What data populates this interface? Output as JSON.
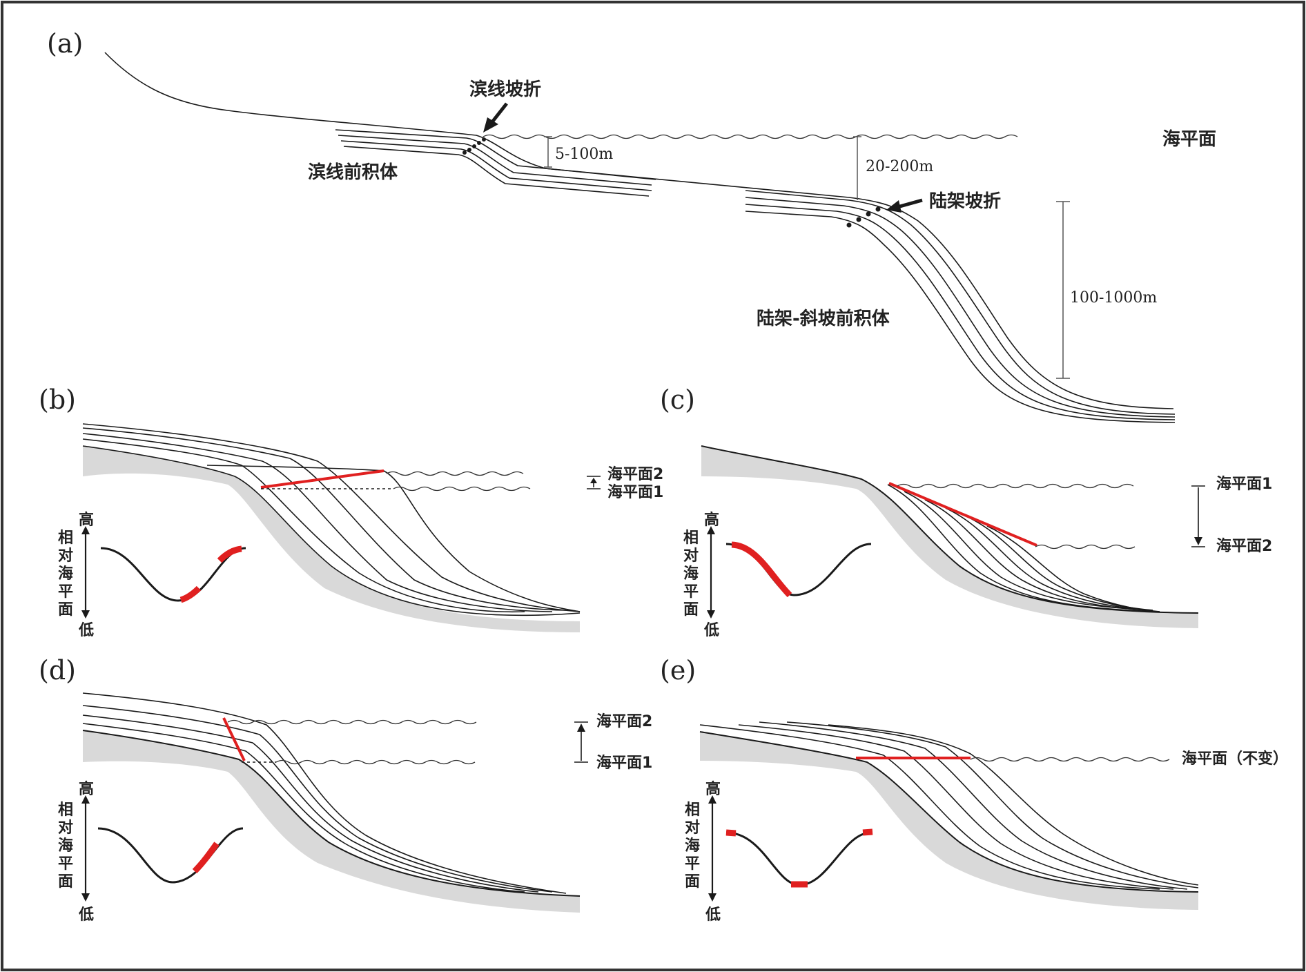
{
  "colors": {
    "red": "#e02020",
    "basement": "#d9d9d9",
    "ink": "#1a1a1a"
  },
  "panel_a": {
    "label": "(a)",
    "shoreline_break": "滨线坡折",
    "shoreline_prograde": "滨线前积体",
    "sea_level": "海平面",
    "depth_small": "5-100m",
    "depth_mid": "20-200m",
    "shelf_break": "陆架坡折",
    "depth_large": "100-1000m",
    "shelf_slope_prograde": "陆架-斜坡前积体"
  },
  "panel_b": {
    "label": "(b)",
    "sea_level_2": "海平面2",
    "sea_level_1": "海平面1",
    "axis_high": "高",
    "axis_low": "低",
    "axis_title": [
      "相",
      "对",
      "海",
      "平",
      "面"
    ]
  },
  "panel_c": {
    "label": "(c)",
    "sea_level_1": "海平面1",
    "sea_level_2": "海平面2",
    "axis_high": "高",
    "axis_low": "低",
    "axis_title": [
      "相",
      "对",
      "海",
      "平",
      "面"
    ]
  },
  "panel_d": {
    "label": "(d)",
    "sea_level_2": "海平面2",
    "sea_level_1": "海平面1",
    "axis_high": "高",
    "axis_low": "低",
    "axis_title": [
      "相",
      "对",
      "海",
      "平",
      "面"
    ]
  },
  "panel_e": {
    "label": "(e)",
    "sea_level_unchanged": "海平面（不变）",
    "axis_high": "高",
    "axis_low": "低",
    "axis_title": [
      "相",
      "对",
      "海",
      "平",
      "面"
    ]
  }
}
